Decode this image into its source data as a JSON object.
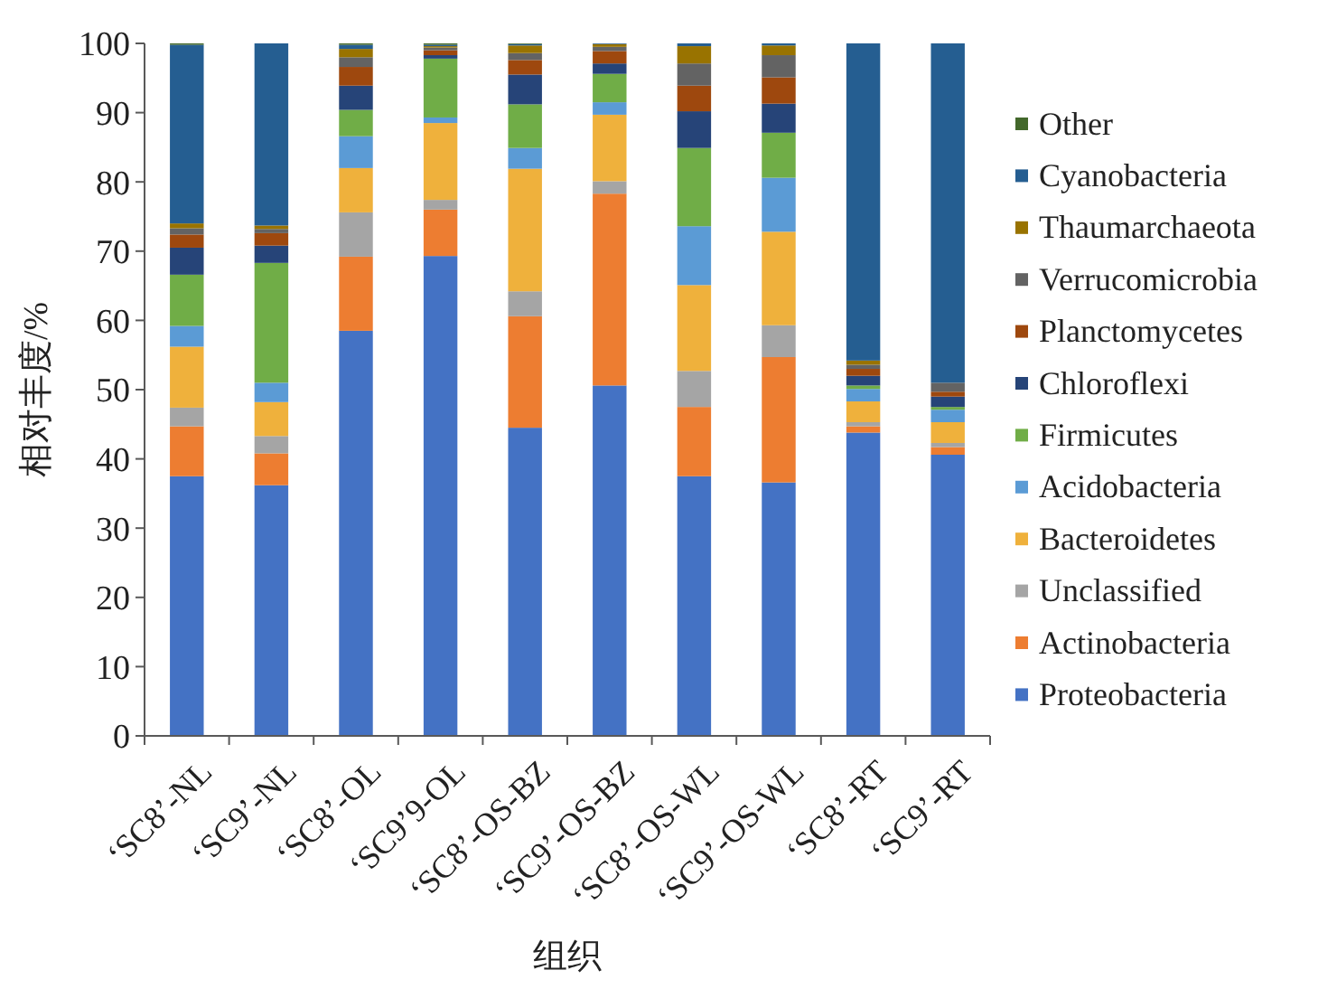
{
  "chart_data": {
    "type": "bar",
    "stacked": true,
    "xlabel": "组织",
    "ylabel": "相对丰度/%",
    "categories": [
      "‘SC8’-NL",
      "‘SC9’-NL",
      "‘SC8’-OL",
      "‘SC9’9-OL",
      "‘SC8’-OS-BZ",
      "‘SC9’-OS-BZ",
      "‘SC8’-OS-WL",
      "‘SC9’-OS-WL",
      "‘SC8’-RT",
      "‘SC9’-RT"
    ],
    "series": [
      {
        "name": "Proteobacteria",
        "color": "#4472c4",
        "values": [
          37.5,
          36.2,
          58.5,
          69.3,
          44.5,
          50.6,
          37.5,
          36.6,
          43.8,
          40.6
        ]
      },
      {
        "name": "Actinobacteria",
        "color": "#ed7d31",
        "values": [
          7.2,
          4.6,
          10.7,
          6.7,
          16.1,
          27.7,
          10,
          18.1,
          0.9,
          1.1
        ]
      },
      {
        "name": "Unclassified",
        "color": "#a5a5a5",
        "values": [
          2.7,
          2.5,
          6.4,
          1.4,
          3.6,
          1.8,
          5.2,
          4.6,
          0.6,
          0.6
        ]
      },
      {
        "name": "Bacteroidetes",
        "color": "#efb13c",
        "values": [
          8.8,
          4.9,
          6.4,
          11.1,
          17.7,
          9.6,
          12.4,
          13.5,
          3,
          3
        ]
      },
      {
        "name": "Acidobacteria",
        "color": "#5b9bd5",
        "values": [
          3,
          2.8,
          4.6,
          0.8,
          3,
          1.8,
          8.5,
          7.8,
          1.8,
          1.8
        ]
      },
      {
        "name": "Firmicutes",
        "color": "#70ad47",
        "values": [
          7.4,
          17.3,
          3.8,
          8.5,
          6.3,
          4.1,
          11.3,
          6.5,
          0.5,
          0.4
        ]
      },
      {
        "name": "Chloroflexi",
        "color": "#264478",
        "values": [
          3.9,
          2.5,
          3.5,
          0.5,
          4.3,
          1.5,
          5.3,
          4.2,
          1.4,
          1.5
        ]
      },
      {
        "name": "Planctomycetes",
        "color": "#9e480e",
        "values": [
          1.9,
          1.8,
          2.7,
          0.7,
          2.1,
          1.8,
          3.7,
          3.8,
          1,
          0.7
        ]
      },
      {
        "name": "Verrucomicrobia",
        "color": "#636363",
        "values": [
          0.9,
          0.6,
          1.4,
          0.4,
          1,
          0.6,
          3.2,
          3.2,
          0.6,
          1.3
        ]
      },
      {
        "name": "Thaumarchaeota",
        "color": "#997300",
        "values": [
          0.7,
          0.5,
          1.2,
          0.2,
          1.1,
          0.4,
          2.5,
          1.4,
          0.6,
          0
        ]
      },
      {
        "name": "Cyanobacteria",
        "color": "#255e91",
        "values": [
          25.8,
          26.3,
          0.6,
          0.2,
          0.2,
          0.1,
          0.4,
          0.3,
          45.8,
          49
        ]
      },
      {
        "name": "Other",
        "color": "#43682b",
        "values": [
          0.2,
          0,
          0.2,
          0.2,
          0.1,
          0,
          0,
          0,
          0,
          0
        ]
      }
    ],
    "ylim": [
      0,
      100
    ],
    "yticks": [
      0,
      10,
      20,
      30,
      40,
      50,
      60,
      70,
      80,
      90,
      100
    ],
    "legend": "right"
  }
}
